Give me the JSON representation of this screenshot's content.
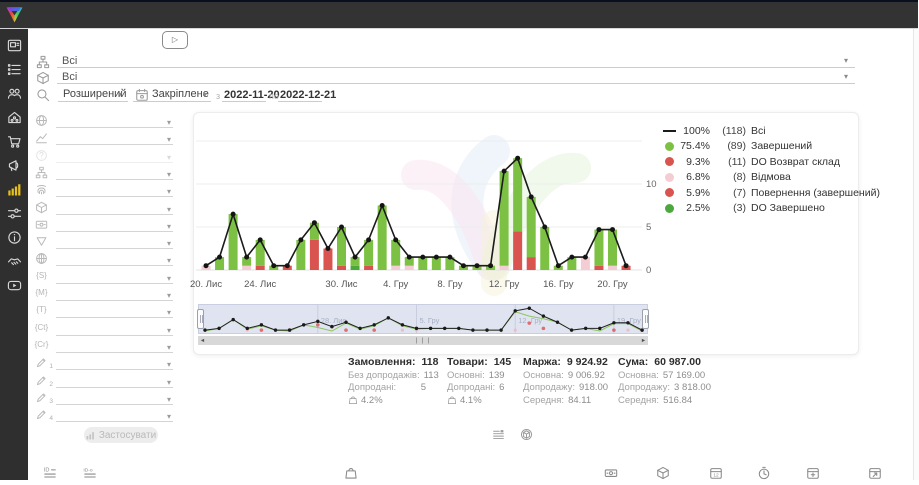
{
  "brand": {
    "logo": "triango-logo"
  },
  "video_button": {
    "icon": "play"
  },
  "filters": {
    "source": {
      "value": "Всі"
    },
    "product": {
      "value": "Всі"
    },
    "mode": {
      "value": "Розширений"
    },
    "period": {
      "value": "Закріплене"
    },
    "from_label": "з",
    "date_from": "2022-11-20",
    "to_label": "по",
    "date_to": "2022-12-21",
    "apply_label": "Застосувати",
    "side_rows": [
      {
        "name": "geo-filter",
        "icon": "globe"
      },
      {
        "name": "trend-filter",
        "icon": "trend"
      },
      {
        "name": "help-filter",
        "icon": "help",
        "disabled": true
      },
      {
        "name": "structure-filter",
        "icon": "sitemap"
      },
      {
        "name": "identity-filter",
        "icon": "fingerprint"
      },
      {
        "name": "product-filter",
        "icon": "cube"
      },
      {
        "name": "payment-filter",
        "icon": "cardeye"
      },
      {
        "name": "funnel-filter",
        "icon": "funnel"
      },
      {
        "name": "web-filter",
        "icon": "web"
      },
      {
        "name": "utm-source-filter",
        "glyph": "{S}"
      },
      {
        "name": "utm-medium-filter",
        "glyph": "{M}"
      },
      {
        "name": "utm-term-filter",
        "glyph": "{T}"
      },
      {
        "name": "utm-content-filter",
        "glyph": "{Ct}"
      },
      {
        "name": "utm-campaign-filter",
        "glyph": "{Cr}"
      },
      {
        "name": "custom-field-1-filter",
        "icon": "pencil",
        "sub": "1"
      },
      {
        "name": "custom-field-2-filter",
        "icon": "pencil",
        "sub": "2"
      },
      {
        "name": "custom-field-3-filter",
        "icon": "pencil",
        "sub": "3"
      },
      {
        "name": "custom-field-4-filter",
        "icon": "pencil",
        "sub": "4"
      }
    ]
  },
  "sidebar": {
    "items": [
      {
        "name": "dashboard",
        "icon": "win"
      },
      {
        "name": "orders",
        "icon": "list"
      },
      {
        "name": "customers",
        "icon": "users"
      },
      {
        "name": "warehouse",
        "icon": "home"
      },
      {
        "name": "purchases",
        "icon": "cart"
      },
      {
        "name": "marketing",
        "icon": "megaphone"
      },
      {
        "name": "statistics",
        "icon": "chartbars",
        "active": true
      },
      {
        "name": "settings",
        "icon": "sliders"
      },
      {
        "name": "info",
        "icon": "info"
      },
      {
        "name": "partners",
        "icon": "handshake"
      },
      {
        "name": "tutorials",
        "icon": "video"
      }
    ]
  },
  "legend": {
    "entries": [
      {
        "swatch": "line",
        "color": "#1b1b1b",
        "pct": "100%",
        "count": "(118)",
        "label": "Всі"
      },
      {
        "swatch": "dot",
        "color": "#7cc144",
        "pct": "75.4%",
        "count": "(89)",
        "label": "Завершений"
      },
      {
        "swatch": "dot",
        "color": "#d9534f",
        "pct": "9.3%",
        "count": "(11)",
        "label": "DO Возврат склад"
      },
      {
        "swatch": "dot",
        "color": "#f3cdd3",
        "pct": "6.8%",
        "count": "(8)",
        "label": "Відмова"
      },
      {
        "swatch": "dot",
        "color": "#d9534f",
        "pct": "5.9%",
        "count": "(7)",
        "label": "Повернення (завершений)"
      },
      {
        "swatch": "dot",
        "color": "#4ca83d",
        "pct": "2.5%",
        "count": "(3)",
        "label": "DO Завершено"
      }
    ]
  },
  "chart_data": {
    "type": "stacked-bar+line",
    "date_start": "2022-11-20",
    "date_end": "2022-12-21",
    "y_ticks": [
      0,
      5,
      10
    ],
    "gridlines": [
      0,
      5,
      10,
      15
    ],
    "colors": {
      "pink": "#f3cdd3",
      "red": "#d9534f",
      "green": "#7cc144",
      "darkgreen": "#4ca83d",
      "line": "#1b1b1b"
    },
    "segment_order": [
      "pink",
      "red",
      "darkgreen",
      "green"
    ],
    "bars": [
      [
        0.5,
        0,
        0,
        0
      ],
      [
        0,
        0,
        1.5,
        0
      ],
      [
        0,
        0,
        6.5,
        0
      ],
      [
        0.5,
        0,
        1,
        0
      ],
      [
        0,
        0.5,
        3,
        0
      ],
      [
        0,
        0,
        0.5,
        0
      ],
      [
        0,
        0.5,
        0,
        0
      ],
      [
        0,
        0,
        3.5,
        0
      ],
      [
        0,
        3.5,
        2,
        0
      ],
      [
        0,
        2.5,
        0,
        0
      ],
      [
        0,
        0.5,
        4.5,
        0
      ],
      [
        0,
        0,
        1,
        0.5
      ],
      [
        0,
        0.5,
        3,
        0
      ],
      [
        0,
        0,
        7.5,
        0
      ],
      [
        0.5,
        0,
        3,
        0
      ],
      [
        0.5,
        0,
        1,
        0
      ],
      [
        0,
        0,
        1.5,
        0
      ],
      [
        0,
        0,
        1.5,
        0
      ],
      [
        0,
        0,
        1.5,
        0
      ],
      [
        0,
        0,
        0.5,
        0
      ],
      [
        0,
        0,
        0.5,
        0
      ],
      [
        0,
        0,
        0.5,
        0
      ],
      [
        0.5,
        0,
        11,
        0
      ],
      [
        0,
        4.5,
        8.5,
        0
      ],
      [
        0,
        1.5,
        7,
        0
      ],
      [
        0,
        0,
        5,
        0
      ],
      [
        0,
        0,
        0.5,
        0
      ],
      [
        0,
        0,
        1.5,
        0
      ],
      [
        1.5,
        0,
        0,
        0
      ],
      [
        0,
        0.5,
        4.2,
        0
      ],
      [
        0.5,
        0,
        4.2,
        0
      ],
      [
        0,
        0.5,
        0,
        0
      ]
    ],
    "x_labels": [
      {
        "i": 0,
        "label": "20. Лис"
      },
      {
        "i": 4,
        "label": "24. Лис"
      },
      {
        "i": 10,
        "label": "30. Лис"
      },
      {
        "i": 14,
        "label": "4. Гру"
      },
      {
        "i": 18,
        "label": "8. Гру"
      },
      {
        "i": 22,
        "label": "12. Гру"
      },
      {
        "i": 26,
        "label": "16. Гру"
      },
      {
        "i": 30,
        "label": "20. Гру"
      }
    ],
    "navigator_labels": [
      {
        "i": 8,
        "label": "28. Лис"
      },
      {
        "i": 15,
        "label": "5. Гру"
      },
      {
        "i": 22,
        "label": "12. Гру"
      },
      {
        "i": 29,
        "label": "19. Гру"
      }
    ]
  },
  "stats": {
    "cols": [
      {
        "name": "orders",
        "label": "Замовлення:",
        "value": "118",
        "rows": [
          [
            "Без допродажів:",
            "113"
          ],
          [
            "Допродані:",
            "5"
          ]
        ],
        "pct": "4.2%"
      },
      {
        "name": "products",
        "label": "Товари:",
        "value": "145",
        "rows": [
          [
            "Основні:",
            "139"
          ],
          [
            "Допродані:",
            "6"
          ]
        ],
        "pct": "4.1%"
      },
      {
        "name": "margin",
        "label": "Маржа:",
        "value": "9 924.92",
        "rows": [
          [
            "Основна:",
            "9 006.92"
          ],
          [
            "Допродажу:",
            "918.00"
          ],
          [
            "Середня:",
            "84.11"
          ]
        ]
      },
      {
        "name": "total",
        "label": "Сума:",
        "value": "60 987.00",
        "rows": [
          [
            "Основна:",
            "57 169.00"
          ],
          [
            "Допродажу:",
            "3 818.00"
          ],
          [
            "Середня:",
            "516.84"
          ]
        ]
      }
    ]
  },
  "toolbar_icons": [
    {
      "name": "summary-list",
      "icon": "listsum"
    },
    {
      "name": "grouping-package",
      "icon": "pkg"
    }
  ],
  "table_header_icons": [
    {
      "name": "id-column",
      "icon": "idlist"
    },
    {
      "name": "id-o-column",
      "icon": "idolist"
    },
    {
      "name": "bag-column",
      "icon": "bag"
    },
    {
      "name": "money-column",
      "icon": "banknote"
    },
    {
      "name": "package-column",
      "icon": "cube"
    },
    {
      "name": "date-column",
      "icon": "caldate"
    },
    {
      "name": "time-column",
      "icon": "clock"
    },
    {
      "name": "date-add-column",
      "icon": "caladd"
    },
    {
      "name": "date-edit-column",
      "icon": "caledit"
    }
  ]
}
